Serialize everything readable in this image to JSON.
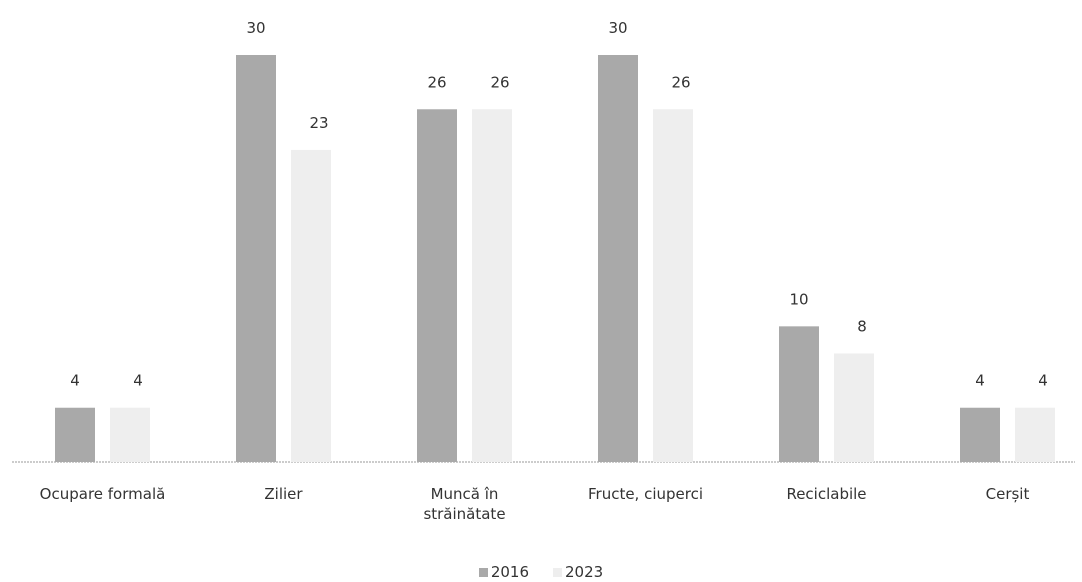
{
  "chart_data": {
    "type": "bar",
    "categories": [
      "Ocupare formală",
      "Zilier",
      "Muncă în străinătate",
      "Fructe, ciuperci",
      "Reciclabile",
      "Cerșit"
    ],
    "series": [
      {
        "name": "2016",
        "color": "#a9a9a9",
        "values": [
          4,
          30,
          26,
          30,
          10,
          4
        ]
      },
      {
        "name": "2023",
        "color": "#eeeeee",
        "values": [
          4,
          23,
          26,
          26,
          8,
          4
        ]
      }
    ],
    "legend": "bottom"
  }
}
